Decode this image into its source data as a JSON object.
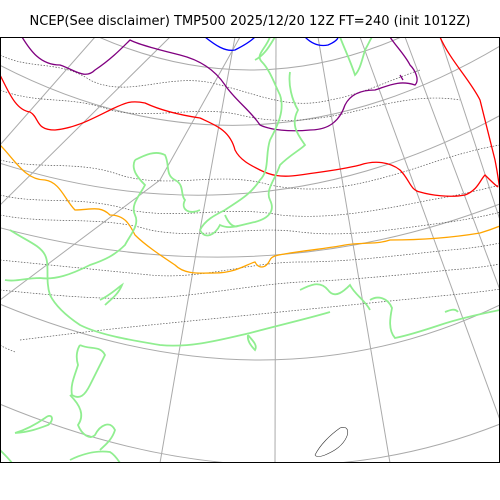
{
  "title": "NCEP(See disclaimer) TMP500 2025/12/20 12Z FT=240 (init 1012Z)",
  "colors": {
    "coastline": "#90ee90",
    "isotherm_dotted": "#555555",
    "graticule": "#aaaaaa",
    "contour_orange": "#ffa500",
    "contour_red": "#ff0000",
    "contour_purple": "#800080",
    "contour_blue": "#0000ff"
  }
}
